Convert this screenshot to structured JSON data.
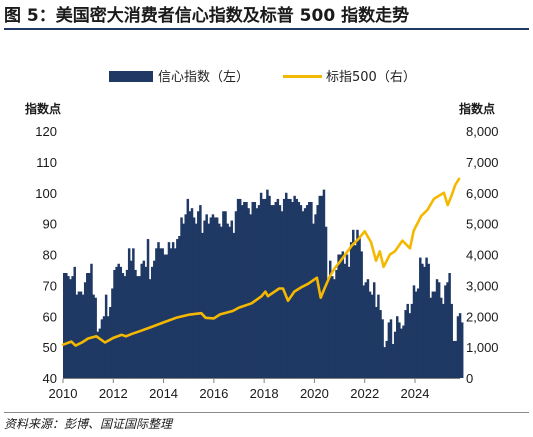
{
  "figure": {
    "title": "图 5：美国密大消费者信心指数及标普 500 指数走势",
    "source": "资料来源：彭博、国证国际整理"
  },
  "chart_data": {
    "type": "bar+line",
    "legend_position": "top",
    "grid": false,
    "colors": {
      "bar": "#1f3864",
      "line": "#f5b800"
    },
    "x": {
      "range": [
        2010.0,
        2025.75
      ],
      "ticks": [
        "2010",
        "2012",
        "2014",
        "2016",
        "2018",
        "2020",
        "2022",
        "2024"
      ]
    },
    "y_left": {
      "label": "指数点",
      "range": [
        40,
        120
      ],
      "ticks": [
        "120",
        "110",
        "100",
        "90",
        "80",
        "70",
        "60",
        "50",
        "40"
      ]
    },
    "y_right": {
      "label": "指数点",
      "range": [
        0,
        8000
      ],
      "ticks": [
        "8,000",
        "7,000",
        "6,000",
        "5,000",
        "4,000",
        "3,000",
        "2,000",
        "1,000",
        "0"
      ]
    },
    "series": [
      {
        "name": "信心指数（左）",
        "type": "bar",
        "axis": "left",
        "x_start": 2010.0,
        "step": 0.0833,
        "values": [
          74,
          74,
          73,
          72,
          73,
          76,
          67,
          68,
          68,
          67,
          71,
          74,
          74,
          77,
          67,
          66,
          55,
          56,
          59,
          60,
          67,
          60,
          63,
          69,
          75,
          76,
          77,
          76,
          74,
          73,
          75,
          82,
          78,
          82,
          75,
          73,
          73,
          77,
          78,
          76,
          85,
          72,
          76,
          78,
          82,
          84,
          82,
          82,
          80,
          80,
          84,
          82,
          84,
          82,
          85,
          86,
          92,
          90,
          93,
          98,
          94,
          95,
          92,
          90,
          94,
          96,
          87,
          91,
          93,
          90,
          92,
          93,
          92,
          92,
          90,
          89,
          94,
          94,
          90,
          89,
          91,
          87,
          94,
          98,
          98,
          96,
          97,
          97,
          95,
          93,
          97,
          97,
          95,
          96,
          100,
          98,
          98,
          101,
          99,
          96,
          96,
          97,
          98,
          96,
          94,
          98,
          100,
          98,
          98,
          97,
          99,
          98,
          97,
          96,
          94,
          95,
          96,
          97,
          97,
          90,
          93,
          96,
          99,
          99,
          101,
          89,
          72,
          78,
          73,
          72,
          75,
          80,
          80,
          81,
          77,
          80,
          76,
          84,
          88,
          83,
          88,
          86,
          81,
          70,
          71,
          72,
          68,
          67,
          71,
          63,
          67,
          62,
          59,
          50,
          52,
          58,
          59,
          51,
          55,
          60,
          58,
          56,
          57,
          62,
          64,
          61,
          64,
          70,
          68,
          69,
          79,
          77,
          76,
          79,
          77,
          66,
          68,
          68,
          72,
          71,
          66,
          64,
          70,
          71,
          74,
          64,
          52,
          52,
          60,
          61,
          58
        ]
      },
      {
        "name": "标指500（右）",
        "type": "line",
        "axis": "right",
        "points": [
          [
            2010.0,
            1080
          ],
          [
            2010.33,
            1180
          ],
          [
            2010.5,
            1050
          ],
          [
            2010.75,
            1150
          ],
          [
            2011.0,
            1280
          ],
          [
            2011.33,
            1350
          ],
          [
            2011.67,
            1150
          ],
          [
            2012.0,
            1300
          ],
          [
            2012.33,
            1400
          ],
          [
            2012.5,
            1350
          ],
          [
            2012.75,
            1430
          ],
          [
            2013.0,
            1500
          ],
          [
            2013.5,
            1650
          ],
          [
            2014.0,
            1800
          ],
          [
            2014.5,
            1950
          ],
          [
            2015.0,
            2050
          ],
          [
            2015.5,
            2100
          ],
          [
            2015.67,
            1950
          ],
          [
            2016.0,
            1930
          ],
          [
            2016.25,
            2060
          ],
          [
            2016.75,
            2170
          ],
          [
            2017.0,
            2280
          ],
          [
            2017.5,
            2420
          ],
          [
            2017.9,
            2650
          ],
          [
            2018.05,
            2800
          ],
          [
            2018.15,
            2650
          ],
          [
            2018.6,
            2900
          ],
          [
            2018.75,
            2900
          ],
          [
            2018.95,
            2500
          ],
          [
            2019.2,
            2800
          ],
          [
            2019.5,
            2950
          ],
          [
            2019.75,
            3050
          ],
          [
            2020.1,
            3250
          ],
          [
            2020.25,
            2600
          ],
          [
            2020.4,
            2900
          ],
          [
            2020.6,
            3270
          ],
          [
            2020.8,
            3550
          ],
          [
            2021.0,
            3750
          ],
          [
            2021.5,
            4300
          ],
          [
            2021.75,
            4500
          ],
          [
            2022.0,
            4750
          ],
          [
            2022.25,
            4400
          ],
          [
            2022.45,
            3800
          ],
          [
            2022.6,
            4100
          ],
          [
            2022.75,
            3600
          ],
          [
            2023.0,
            4000
          ],
          [
            2023.2,
            4100
          ],
          [
            2023.5,
            4450
          ],
          [
            2023.8,
            4200
          ],
          [
            2023.95,
            4770
          ],
          [
            2024.25,
            5250
          ],
          [
            2024.5,
            5450
          ],
          [
            2024.75,
            5800
          ],
          [
            2024.95,
            5900
          ],
          [
            2025.15,
            6000
          ],
          [
            2025.3,
            5600
          ],
          [
            2025.45,
            5900
          ],
          [
            2025.6,
            6250
          ],
          [
            2025.75,
            6450
          ]
        ]
      }
    ]
  }
}
